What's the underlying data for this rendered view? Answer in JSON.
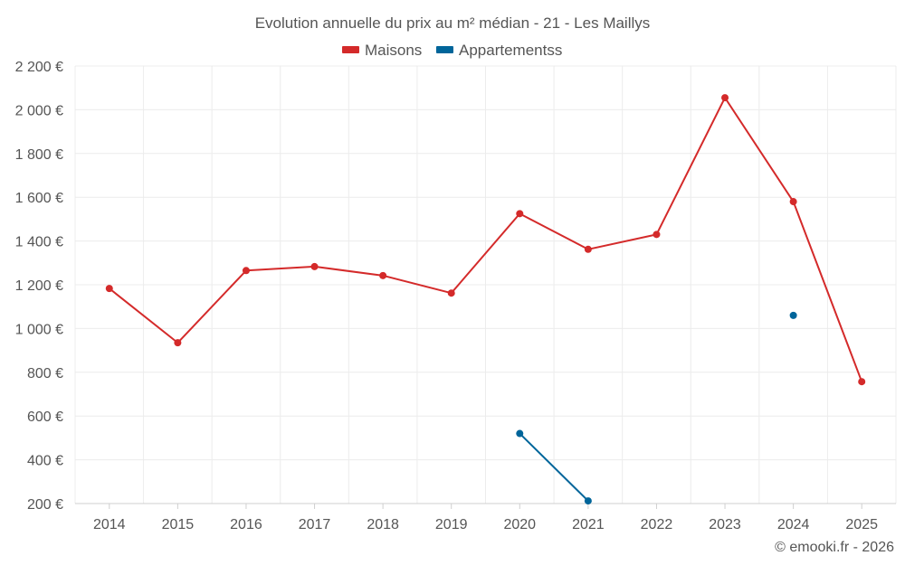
{
  "chart_data": {
    "type": "line",
    "title": "Evolution annuelle du prix au m² médian - 21 - Les Maillys",
    "categories": [
      "2014",
      "2015",
      "2016",
      "2017",
      "2018",
      "2019",
      "2020",
      "2021",
      "2022",
      "2023",
      "2024",
      "2025"
    ],
    "series": [
      {
        "name": "Maisons",
        "color": "#d42a2a",
        "values": [
          1183,
          935,
          1265,
          1283,
          1242,
          1162,
          1525,
          1362,
          1430,
          2055,
          1580,
          757
        ]
      },
      {
        "name": "Appartementss",
        "color": "#00659a",
        "values": [
          null,
          null,
          null,
          null,
          null,
          null,
          520,
          212,
          null,
          null,
          1060,
          null
        ]
      }
    ],
    "ylim": [
      200,
      2200
    ],
    "yticks": [
      200,
      400,
      600,
      800,
      1000,
      1200,
      1400,
      1600,
      1800,
      2000,
      2200
    ],
    "ytick_labels": [
      "200 €",
      "400 €",
      "600 €",
      "800 €",
      "1 000 €",
      "1 200 €",
      "1 400 €",
      "1 600 €",
      "1 800 €",
      "2 000 €",
      "2 200 €"
    ],
    "xlabel": "",
    "ylabel": "",
    "grid": true,
    "legend_position": "top-center"
  },
  "credit": "© emooki.fr - 2026"
}
